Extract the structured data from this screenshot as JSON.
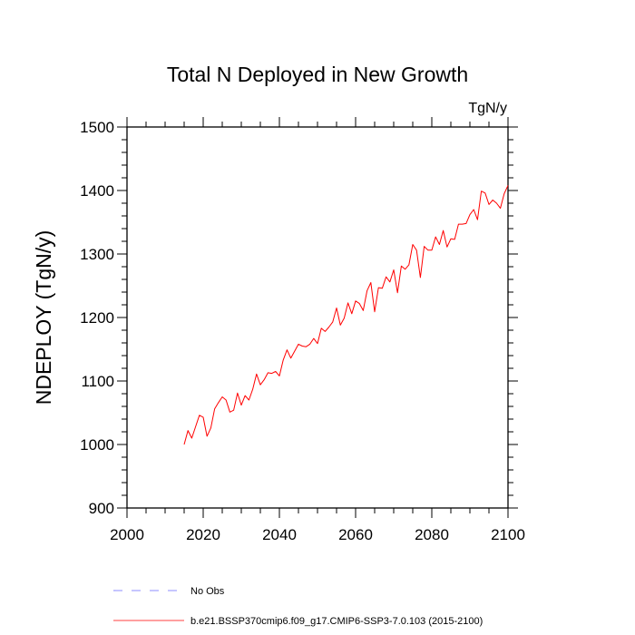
{
  "chart_data": {
    "type": "line",
    "title": "Total N Deployed in New Growth",
    "units": "TgN/y",
    "xlabel": "",
    "ylabel": "NDEPLOY  (TgN/y)",
    "xlim": [
      2000,
      2100
    ],
    "ylim": [
      900,
      1500
    ],
    "xticks": [
      2000,
      2020,
      2040,
      2060,
      2080,
      2100
    ],
    "yticks": [
      900,
      1000,
      1100,
      1200,
      1300,
      1400,
      1500
    ],
    "grid": false,
    "legend": [
      {
        "label": "No Obs",
        "color": "#0000ff",
        "style": "dashed"
      },
      {
        "label": "b.e21.BSSP370cmip6.f09_g17.CMIP6-SSP3-7.0.103 (2015-2100)",
        "color": "#ff0000",
        "style": "solid"
      }
    ],
    "series": [
      {
        "name": "b.e21.BSSP370cmip6.f09_g17.CMIP6-SSP3-7.0.103 (2015-2100)",
        "color": "#ff0000",
        "x": [
          2015,
          2016,
          2017,
          2018,
          2019,
          2020,
          2021,
          2022,
          2023,
          2024,
          2025,
          2026,
          2027,
          2028,
          2029,
          2030,
          2031,
          2032,
          2033,
          2034,
          2035,
          2036,
          2037,
          2038,
          2039,
          2040,
          2041,
          2042,
          2043,
          2044,
          2045,
          2046,
          2047,
          2048,
          2049,
          2050,
          2051,
          2052,
          2053,
          2054,
          2055,
          2056,
          2057,
          2058,
          2059,
          2060,
          2061,
          2062,
          2063,
          2064,
          2065,
          2066,
          2067,
          2068,
          2069,
          2070,
          2071,
          2072,
          2073,
          2074,
          2075,
          2076,
          2077,
          2078,
          2079,
          2080,
          2081,
          2082,
          2083,
          2084,
          2085,
          2086,
          2087,
          2088,
          2089,
          2090,
          2091,
          2092,
          2093,
          2094,
          2095,
          2096,
          2097,
          2098,
          2099,
          2100
        ],
        "values": [
          1000,
          1022,
          1010,
          1028,
          1046,
          1043,
          1013,
          1026,
          1056,
          1066,
          1075,
          1070,
          1051,
          1054,
          1081,
          1062,
          1077,
          1070,
          1087,
          1111,
          1094,
          1102,
          1113,
          1112,
          1115,
          1108,
          1133,
          1149,
          1136,
          1147,
          1158,
          1155,
          1154,
          1158,
          1167,
          1159,
          1183,
          1178,
          1185,
          1193,
          1215,
          1188,
          1199,
          1223,
          1206,
          1226,
          1222,
          1211,
          1242,
          1255,
          1209,
          1247,
          1246,
          1264,
          1256,
          1275,
          1239,
          1281,
          1276,
          1283,
          1315,
          1306,
          1263,
          1312,
          1306,
          1306,
          1327,
          1315,
          1337,
          1311,
          1324,
          1323,
          1347,
          1347,
          1348,
          1362,
          1370,
          1354,
          1399,
          1396,
          1378,
          1385,
          1380,
          1372,
          1395,
          1408
        ]
      }
    ]
  }
}
